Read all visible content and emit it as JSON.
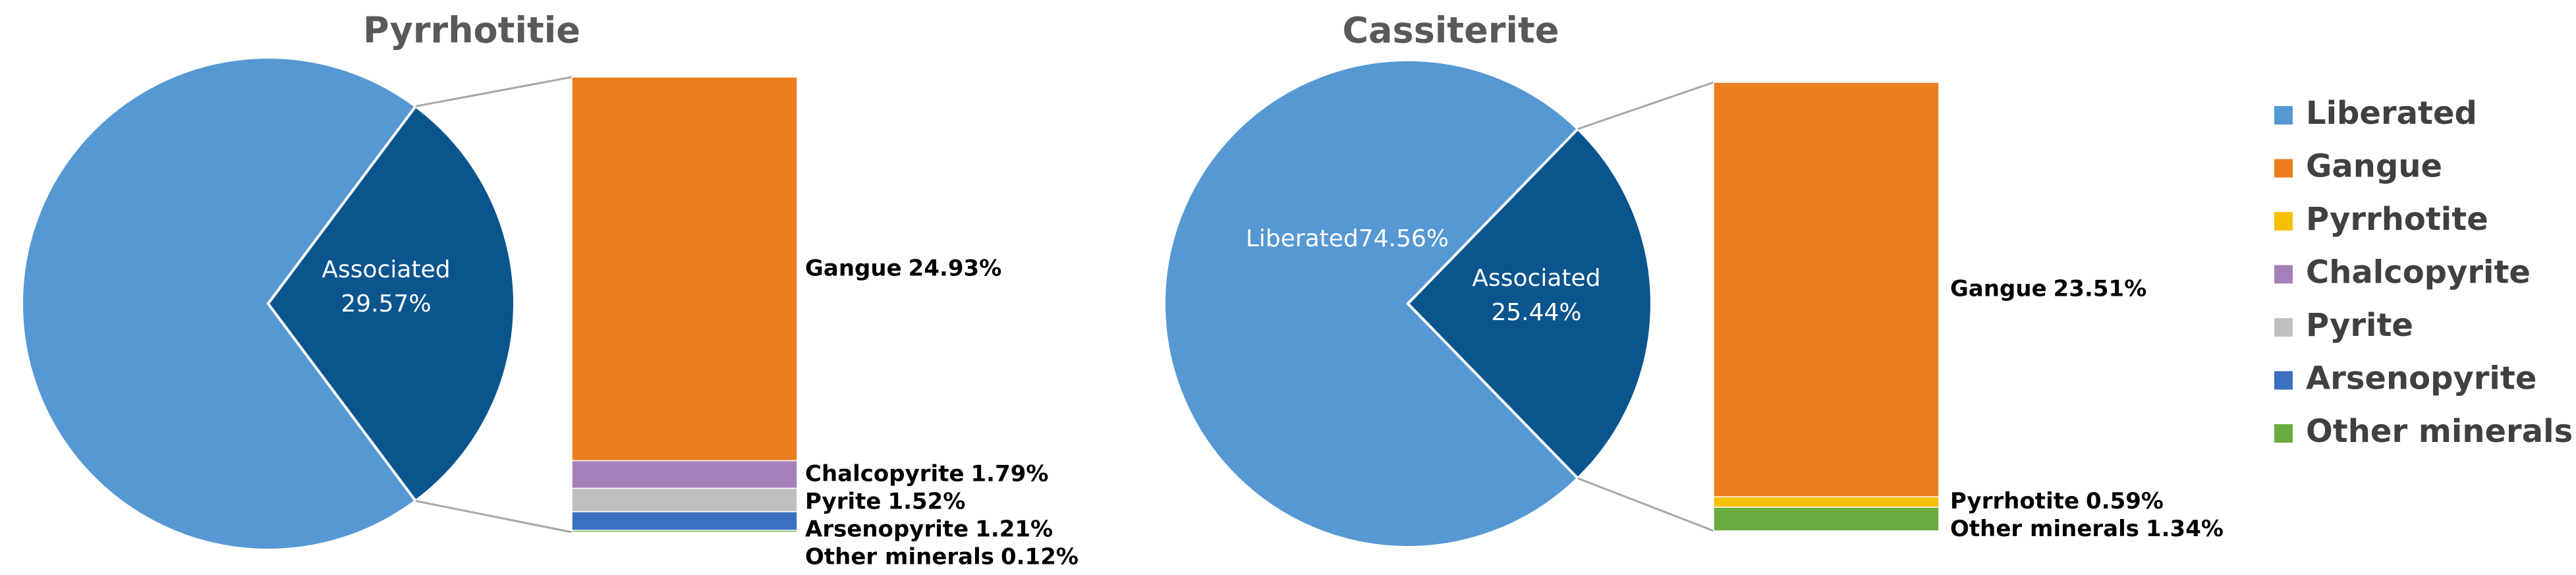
{
  "chart_data": [
    {
      "type": "pie-of-bar",
      "title": "Pyrrhotitie",
      "pie": {
        "categories": [
          "Liberated",
          "Associated"
        ],
        "values": [
          70.43,
          29.57
        ],
        "value_labels": [
          null,
          "29.57%"
        ],
        "colors": [
          "#5698d3",
          "#0b558f"
        ]
      },
      "bar": {
        "categories": [
          "Gangue",
          "Chalcopyrite",
          "Pyrite",
          "Arsenopyrite",
          "Other minerals"
        ],
        "values": [
          24.93,
          1.79,
          1.52,
          1.21,
          0.12
        ],
        "value_labels": [
          "24.93%",
          "1.79%",
          "1.52%",
          "1.21%",
          "0.12%"
        ],
        "colors": [
          "#ed7d1f",
          "#a57fba",
          "#bfbfbf",
          "#3b6fbf",
          "#6aab3f"
        ]
      }
    },
    {
      "type": "pie-of-bar",
      "title": "Cassiterite",
      "pie": {
        "categories": [
          "Liberated",
          "Associated"
        ],
        "values": [
          74.56,
          25.44
        ],
        "value_labels": [
          "74.56%",
          "25.44%"
        ],
        "colors": [
          "#5698d3",
          "#0b558f"
        ]
      },
      "bar": {
        "categories": [
          "Gangue",
          "Pyrrhotite",
          "Other  minerals"
        ],
        "values": [
          23.51,
          0.59,
          1.34
        ],
        "value_labels": [
          "23.51%",
          "0.59%",
          "1.34%"
        ],
        "colors": [
          "#ed7d1f",
          "#f5c000",
          "#6aab3f"
        ]
      }
    }
  ],
  "legend": [
    {
      "name": "Liberated",
      "color": "#5698d3"
    },
    {
      "name": "Gangue",
      "color": "#ed7d1f"
    },
    {
      "name": "Pyrrhotite",
      "color": "#f5c000"
    },
    {
      "name": "Chalcopyrite",
      "color": "#a57fba"
    },
    {
      "name": "Pyrite",
      "color": "#bfbfbf"
    },
    {
      "name": "Arsenopyrite",
      "color": "#3b6fbf"
    },
    {
      "name": "Other minerals",
      "color": "#6aab3f"
    }
  ]
}
